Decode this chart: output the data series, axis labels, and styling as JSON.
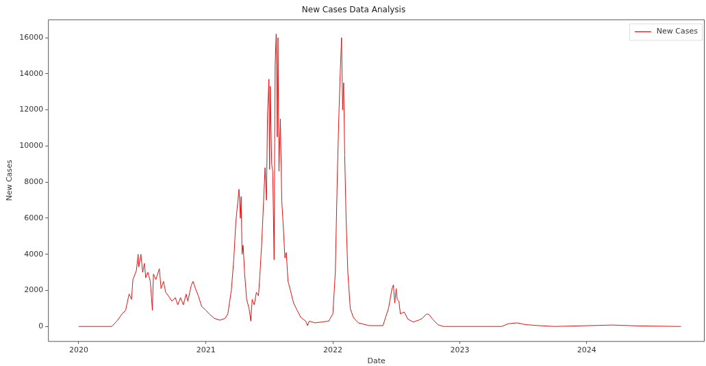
{
  "chart_data": {
    "type": "line",
    "title": "New Cases Data Analysis",
    "xlabel": "Date",
    "ylabel": "New Cases",
    "xlim": [
      "2019-10-05",
      "2024-12-05"
    ],
    "xticks": [
      {
        "value": "2020-01-01",
        "label": "2020"
      },
      {
        "value": "2021-01-01",
        "label": "2021"
      },
      {
        "value": "2022-01-01",
        "label": "2022"
      },
      {
        "value": "2023-01-01",
        "label": "2023"
      },
      {
        "value": "2024-01-01",
        "label": "2024"
      }
    ],
    "ylim": [
      -810,
      17010
    ],
    "yticks": [
      0,
      2000,
      4000,
      6000,
      8000,
      10000,
      12000,
      14000,
      16000
    ],
    "grid": false,
    "legend": "top right",
    "marker": "none",
    "line_style": "solid",
    "x": [
      "2020-01-01",
      "2020-04-05",
      "2020-04-20",
      "2020-05-05",
      "2020-05-15",
      "2020-05-25",
      "2020-06-01",
      "2020-06-05",
      "2020-06-15",
      "2020-06-20",
      "2020-06-22",
      "2020-06-28",
      "2020-07-03",
      "2020-07-08",
      "2020-07-12",
      "2020-07-18",
      "2020-07-25",
      "2020-07-31",
      "2020-08-03",
      "2020-08-10",
      "2020-08-20",
      "2020-08-25",
      "2020-09-01",
      "2020-09-07",
      "2020-09-15",
      "2020-09-25",
      "2020-10-05",
      "2020-10-12",
      "2020-10-20",
      "2020-10-28",
      "2020-11-05",
      "2020-11-10",
      "2020-11-20",
      "2020-11-25",
      "2020-12-02",
      "2020-12-10",
      "2020-12-20",
      "2021-01-01",
      "2021-01-10",
      "2021-01-25",
      "2021-02-10",
      "2021-02-25",
      "2021-03-05",
      "2021-03-15",
      "2021-03-22",
      "2021-03-28",
      "2021-04-03",
      "2021-04-06",
      "2021-04-10",
      "2021-04-12",
      "2021-04-15",
      "2021-04-18",
      "2021-04-22",
      "2021-04-28",
      "2021-05-05",
      "2021-05-10",
      "2021-05-14",
      "2021-05-20",
      "2021-05-26",
      "2021-06-01",
      "2021-06-05",
      "2021-06-10",
      "2021-06-15",
      "2021-06-20",
      "2021-06-24",
      "2021-06-27",
      "2021-07-01",
      "2021-07-03",
      "2021-07-05",
      "2021-07-09",
      "2021-07-12",
      "2021-07-16",
      "2021-07-19",
      "2021-07-22",
      "2021-07-25",
      "2021-07-27",
      "2021-07-30",
      "2021-08-03",
      "2021-08-07",
      "2021-08-12",
      "2021-08-16",
      "2021-08-20",
      "2021-08-25",
      "2021-09-01",
      "2021-09-10",
      "2021-09-20",
      "2021-10-01",
      "2021-10-15",
      "2021-10-20",
      "2021-10-25",
      "2021-11-10",
      "2021-12-01",
      "2021-12-20",
      "2022-01-01",
      "2022-01-08",
      "2022-01-14",
      "2022-01-18",
      "2022-01-22",
      "2022-01-26",
      "2022-01-29",
      "2022-02-01",
      "2022-02-04",
      "2022-02-08",
      "2022-02-13",
      "2022-02-20",
      "2022-03-01",
      "2022-03-15",
      "2022-04-15",
      "2022-05-25",
      "2022-06-10",
      "2022-06-20",
      "2022-06-24",
      "2022-06-28",
      "2022-07-02",
      "2022-07-05",
      "2022-07-10",
      "2022-07-14",
      "2022-07-25",
      "2022-08-05",
      "2022-08-20",
      "2022-09-05",
      "2022-09-15",
      "2022-09-28",
      "2022-10-05",
      "2022-10-15",
      "2022-10-30",
      "2022-11-15",
      "2023-05-01",
      "2023-05-20",
      "2023-06-15",
      "2023-07-10",
      "2023-08-15",
      "2023-10-01",
      "2024-02-01",
      "2024-03-15",
      "2024-06-01",
      "2024-09-28"
    ],
    "series": [
      {
        "name": "New Cases",
        "color": "#e01010",
        "values": [
          0,
          0,
          300,
          700,
          900,
          1800,
          1500,
          2600,
          3100,
          4000,
          3300,
          4000,
          3000,
          3500,
          2700,
          3000,
          2500,
          900,
          2900,
          2600,
          3200,
          2100,
          2500,
          1900,
          1700,
          1400,
          1600,
          1200,
          1600,
          1200,
          1800,
          1400,
          2300,
          2500,
          2100,
          1700,
          1100,
          900,
          700,
          450,
          350,
          450,
          700,
          2000,
          3700,
          5800,
          7000,
          7600,
          6000,
          7200,
          4000,
          4500,
          3000,
          1500,
          1000,
          300,
          1500,
          1200,
          1900,
          1700,
          2800,
          4500,
          6600,
          8800,
          7000,
          11700,
          13700,
          8700,
          13300,
          9000,
          8600,
          3700,
          14500,
          16200,
          10500,
          16000,
          8600,
          11500,
          7000,
          5300,
          3800,
          4100,
          2500,
          2000,
          1300,
          900,
          500,
          300,
          50,
          300,
          200,
          250,
          300,
          700,
          3000,
          8500,
          11500,
          14000,
          16000,
          12000,
          13500,
          9500,
          6000,
          3000,
          1000,
          500,
          200,
          50,
          50,
          1000,
          2100,
          2300,
          1300,
          2100,
          1500,
          1400,
          700,
          800,
          400,
          250,
          350,
          450,
          700,
          650,
          400,
          100,
          0,
          0,
          150,
          200,
          100,
          50,
          0,
          60,
          80,
          30,
          0
        ]
      }
    ]
  }
}
